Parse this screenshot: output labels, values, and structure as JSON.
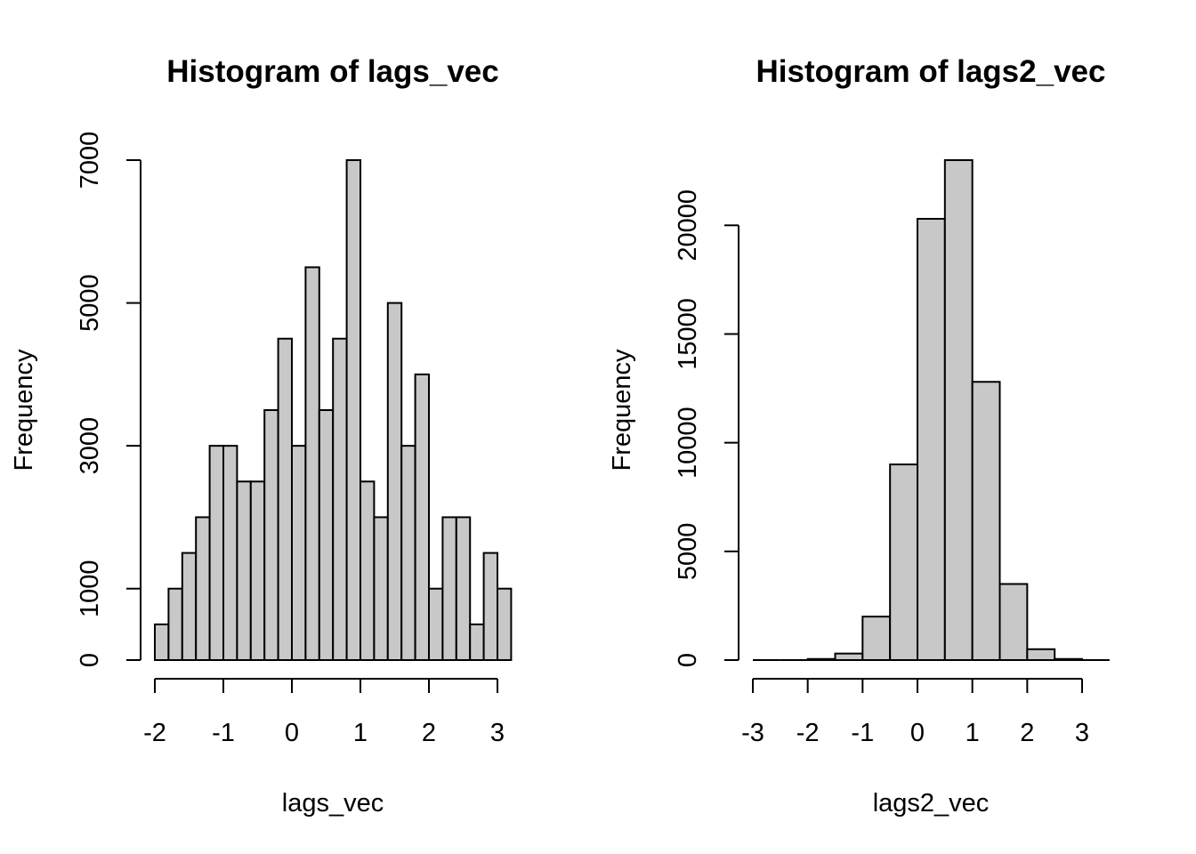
{
  "chart_data": [
    {
      "type": "bar",
      "title": "Histogram of lags_vec",
      "xlabel": "lags_vec",
      "ylabel": "Frequency",
      "bin_width": 0.2,
      "bins_start": -2.0,
      "values": [
        500,
        1000,
        1500,
        2000,
        3000,
        3000,
        2500,
        2500,
        3500,
        4500,
        3000,
        5500,
        3500,
        4500,
        7000,
        2500,
        2000,
        5000,
        3000,
        4000,
        1000,
        2000,
        2000,
        500,
        1500,
        1000
      ],
      "xlim": [
        -2.0,
        3.2
      ],
      "ylim": [
        0,
        7000
      ],
      "xticks": [
        -2,
        -1,
        0,
        1,
        2,
        3
      ],
      "yticks": [
        0,
        1000,
        3000,
        5000,
        7000
      ],
      "grid": false
    },
    {
      "type": "bar",
      "title": "Histogram of lags2_vec",
      "xlabel": "lags2_vec",
      "ylabel": "Frequency",
      "bin_width": 0.5,
      "bins_start": -3.0,
      "values": [
        0,
        0,
        50,
        300,
        2000,
        9000,
        20300,
        23000,
        12800,
        3500,
        500,
        50,
        0
      ],
      "xlim": [
        -3.0,
        3.5
      ],
      "ylim": [
        0,
        23000
      ],
      "xticks": [
        -3,
        -2,
        -1,
        0,
        1,
        2,
        3
      ],
      "yticks": [
        0,
        5000,
        10000,
        15000,
        20000
      ],
      "grid": false
    }
  ]
}
